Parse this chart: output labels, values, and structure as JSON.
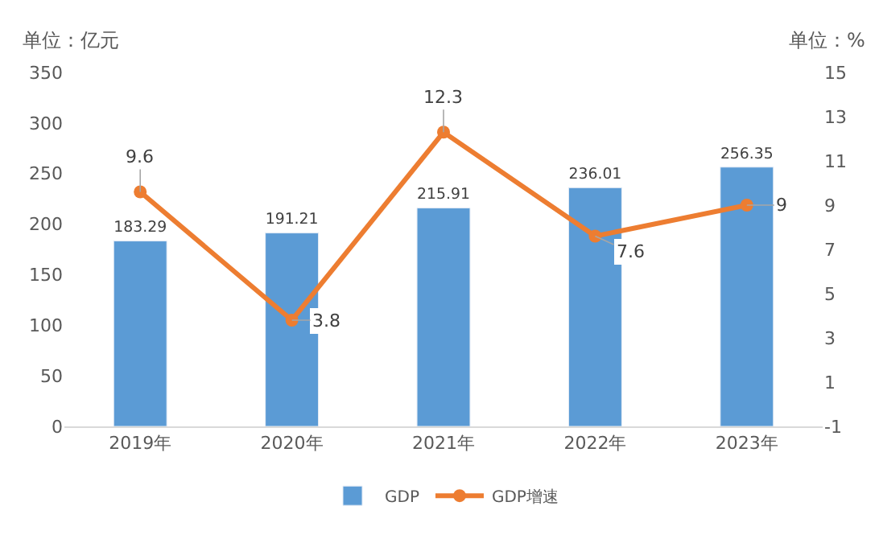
{
  "chart_data": {
    "type": "bar",
    "ylabel": "单位：亿元",
    "y2label": "单位：%",
    "categories": [
      "2019年",
      "2020年",
      "2021年",
      "2022年",
      "2023年"
    ],
    "series": [
      {
        "name": "GDP",
        "color": "#5b9bd5",
        "values": [
          183.29,
          191.21,
          215.91,
          236.01,
          256.35
        ]
      },
      {
        "name": "GDP增速",
        "type": "line",
        "axis": "y2",
        "color": "#ed7d31",
        "marker": "circle",
        "values": [
          9.6,
          3.8,
          12.3,
          7.6,
          9
        ]
      }
    ],
    "ylim": [
      0,
      350
    ],
    "yticks": [
      0,
      50,
      100,
      150,
      200,
      250,
      300,
      350
    ],
    "y2lim": [
      -1,
      15
    ],
    "y2ticks": [
      -1,
      1,
      3,
      5,
      7,
      9,
      11,
      13,
      15
    ],
    "data_labels": true,
    "legend": "bottom"
  }
}
